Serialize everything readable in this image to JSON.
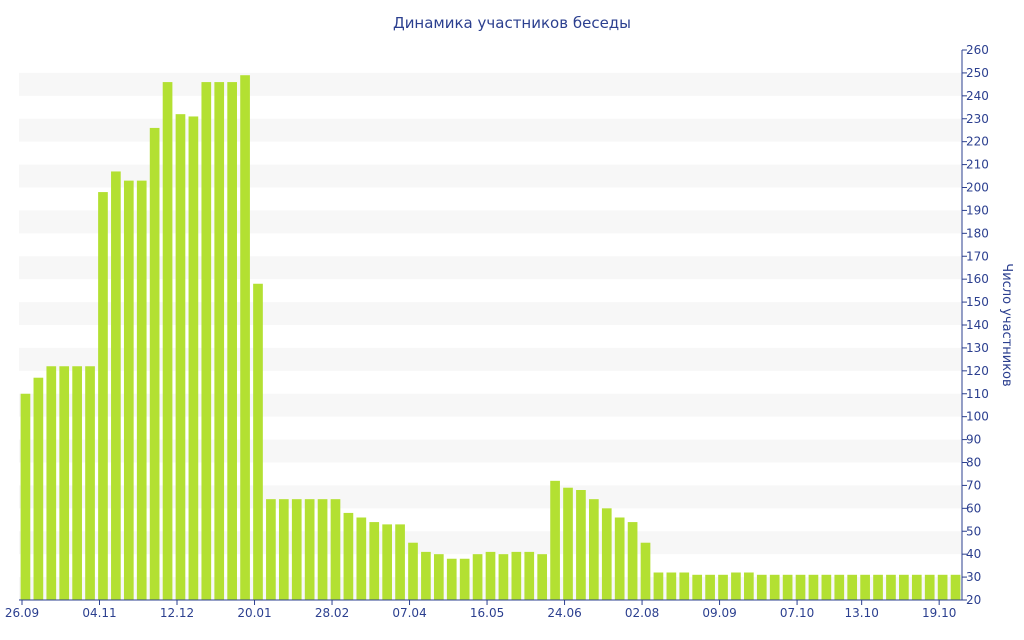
{
  "chart_data": {
    "type": "bar",
    "title": "Динамика участников беседы",
    "xlabel": "",
    "ylabel": "Число участников",
    "ylim": [
      20,
      260
    ],
    "yticks": [
      20,
      30,
      40,
      50,
      60,
      70,
      80,
      90,
      100,
      110,
      120,
      130,
      140,
      150,
      160,
      170,
      180,
      190,
      200,
      210,
      220,
      230,
      240,
      250,
      260
    ],
    "x_tick_labels": [
      {
        "index": 0,
        "label": "26.09"
      },
      {
        "index": 6,
        "label": "04.11"
      },
      {
        "index": 12,
        "label": "12.12"
      },
      {
        "index": 18,
        "label": "20.01"
      },
      {
        "index": 24,
        "label": "28.02"
      },
      {
        "index": 30,
        "label": "07.04"
      },
      {
        "index": 36,
        "label": "16.05"
      },
      {
        "index": 42,
        "label": "24.06"
      },
      {
        "index": 48,
        "label": "02.08"
      },
      {
        "index": 54,
        "label": "09.09"
      },
      {
        "index": 60,
        "label": "07.10"
      },
      {
        "index": 65,
        "label": "13.10"
      },
      {
        "index": 71,
        "label": "19.10"
      }
    ],
    "values": [
      110,
      117,
      122,
      122,
      122,
      122,
      198,
      207,
      203,
      203,
      226,
      246,
      232,
      231,
      246,
      246,
      246,
      249,
      158,
      64,
      64,
      64,
      64,
      64,
      64,
      58,
      56,
      54,
      53,
      53,
      45,
      41,
      40,
      38,
      38,
      40,
      41,
      40,
      41,
      41,
      40,
      72,
      69,
      68,
      64,
      60,
      56,
      54,
      45,
      32,
      32,
      32,
      31,
      31,
      31,
      32,
      32,
      31,
      31,
      31,
      31,
      31,
      31,
      31,
      31,
      31,
      31,
      31,
      31,
      31,
      31,
      31,
      31
    ],
    "grid": "horizontal bands",
    "y_axis_position": "right",
    "colors": {
      "bar": "#b3e032",
      "band": "#f7f7f7",
      "axis": "#2b3f8f",
      "title": "#2b3f8f"
    }
  }
}
